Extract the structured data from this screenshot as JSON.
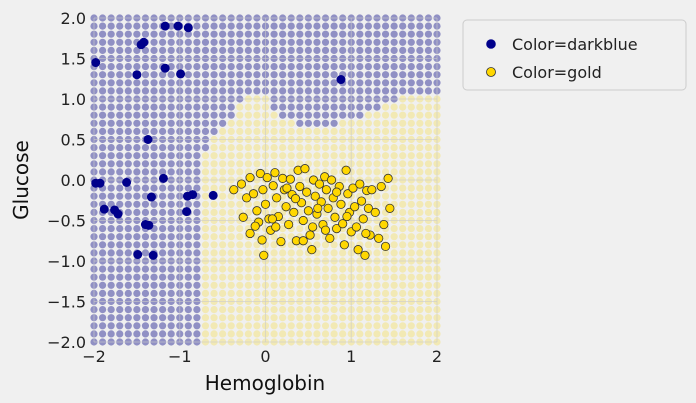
{
  "chart_data": {
    "type": "scatter",
    "title": "",
    "xlabel": "Hemoglobin",
    "ylabel": "Glucose",
    "xlim": [
      -2,
      2
    ],
    "ylim": [
      -2,
      2
    ],
    "xticks": [
      -2,
      -1,
      0,
      1,
      2
    ],
    "xtick_labels": [
      "−2",
      "−1",
      "0",
      "1",
      "2"
    ],
    "yticks": [
      -2.0,
      -1.5,
      -1.0,
      -0.5,
      0.0,
      0.5,
      1.0,
      1.5,
      2.0
    ],
    "ytick_labels": [
      "−2.0",
      "−1.5",
      "−1.0",
      "−0.5",
      "0.0",
      "0.5",
      "1.0",
      "1.5",
      "2.0"
    ],
    "grid": true,
    "legend_position": "outside-right",
    "background_grid": {
      "step": 0.1,
      "point_alpha": 0.45,
      "colors": {
        "darkblue": "#1a1a8f",
        "gold": "#f5e06a"
      },
      "decision_boundary": [
        [
          -2.0,
          -0.7
        ],
        [
          -0.7,
          0.3
        ],
        [
          -0.65,
          0.4
        ],
        [
          -0.6,
          0.5
        ],
        [
          -0.55,
          0.6
        ],
        [
          -0.5,
          0.65
        ],
        [
          -0.45,
          0.7
        ],
        [
          -0.4,
          0.75
        ],
        [
          -0.35,
          0.8
        ],
        [
          -0.3,
          0.9
        ],
        [
          -0.25,
          0.95
        ],
        [
          -0.2,
          1.0
        ],
        [
          0.0,
          1.0
        ],
        [
          0.05,
          0.95
        ],
        [
          0.1,
          0.85
        ],
        [
          0.15,
          0.8
        ],
        [
          0.2,
          0.75
        ],
        [
          0.25,
          0.7
        ],
        [
          0.3,
          0.7
        ],
        [
          0.45,
          0.65
        ],
        [
          0.6,
          0.65
        ],
        [
          0.75,
          0.65
        ],
        [
          0.85,
          0.7
        ],
        [
          1.0,
          0.7
        ],
        [
          1.1,
          0.75
        ],
        [
          1.2,
          0.8
        ],
        [
          1.3,
          0.85
        ],
        [
          1.4,
          0.9
        ],
        [
          1.5,
          0.95
        ],
        [
          1.6,
          1.0
        ],
        [
          2.0,
          1.0
        ]
      ]
    },
    "series": [
      {
        "name": "Color=darkblue",
        "color": "#00008b",
        "edgecolor": "#00008b",
        "points": [
          [
            -1.17,
            1.9
          ],
          [
            -1.02,
            1.9
          ],
          [
            -0.9,
            1.88
          ],
          [
            -1.45,
            1.67
          ],
          [
            -1.42,
            1.7
          ],
          [
            -1.98,
            1.45
          ],
          [
            -1.5,
            1.3
          ],
          [
            -1.17,
            1.38
          ],
          [
            -0.99,
            1.31
          ],
          [
            0.88,
            1.24
          ],
          [
            -1.37,
            0.5
          ],
          [
            -1.98,
            -0.04
          ],
          [
            -1.93,
            -0.04
          ],
          [
            -1.62,
            -0.03
          ],
          [
            -1.19,
            0.02
          ],
          [
            -1.88,
            -0.36
          ],
          [
            -1.76,
            -0.37
          ],
          [
            -1.72,
            -0.42
          ],
          [
            -1.33,
            -0.21
          ],
          [
            -0.91,
            -0.2
          ],
          [
            -0.85,
            -0.18
          ],
          [
            -0.61,
            -0.19
          ],
          [
            -0.92,
            -0.39
          ],
          [
            -1.4,
            -0.55
          ],
          [
            -1.36,
            -0.56
          ],
          [
            -1.49,
            -0.92
          ],
          [
            -1.31,
            -0.93
          ]
        ]
      },
      {
        "name": "Color=gold",
        "color": "#ffd700",
        "edgecolor": "#333333",
        "points": [
          [
            -0.37,
            -0.12
          ],
          [
            -0.28,
            -0.05
          ],
          [
            -0.22,
            -0.22
          ],
          [
            -0.18,
            0.03
          ],
          [
            -0.14,
            -0.17
          ],
          [
            -0.1,
            -0.38
          ],
          [
            -0.08,
            -0.52
          ],
          [
            -0.06,
            0.08
          ],
          [
            -0.03,
            -0.12
          ],
          [
            0.0,
            -0.3
          ],
          [
            0.02,
            0.03
          ],
          [
            0.04,
            -0.48
          ],
          [
            0.06,
            -0.62
          ],
          [
            0.09,
            -0.07
          ],
          [
            0.11,
            0.09
          ],
          [
            0.13,
            -0.22
          ],
          [
            0.15,
            -0.45
          ],
          [
            0.18,
            -0.76
          ],
          [
            0.2,
            0.02
          ],
          [
            0.22,
            -0.12
          ],
          [
            0.24,
            -0.33
          ],
          [
            0.27,
            -0.55
          ],
          [
            0.29,
            0.01
          ],
          [
            0.31,
            -0.18
          ],
          [
            0.33,
            -0.4
          ],
          [
            0.36,
            -0.75
          ],
          [
            0.38,
            0.12
          ],
          [
            0.4,
            -0.08
          ],
          [
            0.42,
            -0.28
          ],
          [
            0.44,
            -0.5
          ],
          [
            0.46,
            0.14
          ],
          [
            0.48,
            -0.15
          ],
          [
            0.5,
            -0.38
          ],
          [
            0.52,
            -0.68
          ],
          [
            0.54,
            -0.86
          ],
          [
            0.56,
            0.0
          ],
          [
            0.58,
            -0.2
          ],
          [
            0.6,
            -0.42
          ],
          [
            0.63,
            -0.05
          ],
          [
            0.65,
            -0.27
          ],
          [
            0.67,
            -0.55
          ],
          [
            0.69,
            0.04
          ],
          [
            0.71,
            -0.12
          ],
          [
            0.73,
            -0.35
          ],
          [
            0.75,
            -0.72
          ],
          [
            0.77,
            0.0
          ],
          [
            0.79,
            -0.22
          ],
          [
            0.81,
            -0.46
          ],
          [
            0.83,
            -0.6
          ],
          [
            0.86,
            -0.08
          ],
          [
            0.88,
            -0.3
          ],
          [
            0.9,
            -0.54
          ],
          [
            0.92,
            -0.8
          ],
          [
            0.94,
            0.12
          ],
          [
            0.96,
            -0.17
          ],
          [
            0.98,
            -0.4
          ],
          [
            1.0,
            -0.64
          ],
          [
            1.02,
            -0.1
          ],
          [
            1.04,
            -0.33
          ],
          [
            1.06,
            -0.58
          ],
          [
            1.08,
            -0.86
          ],
          [
            1.1,
            -0.05
          ],
          [
            1.12,
            -0.26
          ],
          [
            1.14,
            -0.48
          ],
          [
            1.16,
            -0.93
          ],
          [
            1.18,
            -0.13
          ],
          [
            1.2,
            -0.35
          ],
          [
            1.22,
            -0.68
          ],
          [
            1.24,
            -0.12
          ],
          [
            1.28,
            -0.4
          ],
          [
            1.32,
            -0.72
          ],
          [
            1.35,
            -0.08
          ],
          [
            1.38,
            -0.55
          ],
          [
            1.4,
            -0.82
          ],
          [
            1.43,
            0.02
          ],
          [
            1.45,
            -0.35
          ],
          [
            -0.26,
            -0.46
          ],
          [
            -0.18,
            -0.66
          ],
          [
            -0.12,
            -0.57
          ],
          [
            -0.04,
            -0.74
          ],
          [
            0.08,
            -0.48
          ],
          [
            0.12,
            -0.58
          ],
          [
            0.25,
            -0.1
          ],
          [
            0.35,
            -0.23
          ],
          [
            -0.02,
            -0.93
          ],
          [
            0.7,
            -0.62
          ],
          [
            0.55,
            -0.58
          ],
          [
            0.83,
            -0.15
          ],
          [
            1.17,
            -0.66
          ],
          [
            0.95,
            -0.45
          ],
          [
            0.61,
            -0.35
          ],
          [
            0.44,
            -0.75
          ]
        ]
      }
    ]
  }
}
